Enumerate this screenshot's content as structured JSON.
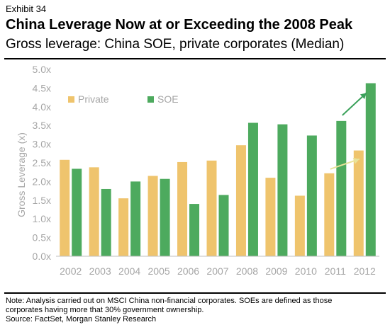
{
  "header": {
    "exhibit": "Exhibit 34",
    "title": "China Leverage Now at or Exceeding the 2008 Peak",
    "subtitle": "Gross leverage: China SOE, private corporates (Median)"
  },
  "footer": {
    "note_line1": "Note: Analysis carried out on MSCI China non-financial corporates. SOEs are defined as those",
    "note_line2": "corporates having more that 30% government ownership.",
    "source": "Source: FactSet, Morgan Stanley Research"
  },
  "colors": {
    "private": "#efc46d",
    "soe": "#4daa5e",
    "axis_text": "#a6a6a6",
    "arrow_private": "#e9e39a",
    "arrow_soe": "#3aa15a"
  },
  "chart_data": {
    "type": "bar",
    "categories": [
      "2002",
      "2003",
      "2004",
      "2005",
      "2006",
      "2007",
      "2008",
      "2009",
      "2010",
      "2011",
      "2012"
    ],
    "series": [
      {
        "name": "Private",
        "values": [
          2.58,
          2.38,
          1.55,
          2.15,
          2.52,
          2.56,
          2.97,
          2.1,
          1.62,
          2.22,
          2.83
        ]
      },
      {
        "name": "SOE",
        "values": [
          2.34,
          1.8,
          2.0,
          2.07,
          1.4,
          1.64,
          3.57,
          3.53,
          3.23,
          3.62,
          4.63
        ]
      }
    ],
    "ylabel": "Gross Leverage (x)",
    "ylim": [
      0,
      5.0
    ],
    "yticks": [
      "0.0x",
      "0.5x",
      "1.0x",
      "1.5x",
      "2.0x",
      "2.5x",
      "3.0x",
      "3.5x",
      "4.0x",
      "4.5x",
      "5.0x"
    ],
    "legend_position": "top-left",
    "grid": false,
    "annotations": [
      {
        "type": "arrow",
        "series": "Private",
        "from": "2011",
        "to": "2012"
      },
      {
        "type": "arrow",
        "series": "SOE",
        "from": "2011",
        "to": "2012"
      }
    ]
  }
}
